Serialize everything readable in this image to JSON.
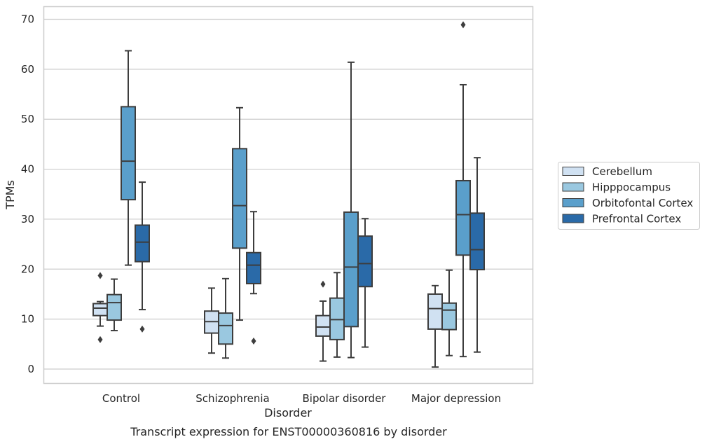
{
  "chart_data": {
    "type": "box",
    "xlabel": "Disorder",
    "ylabel": "TPMs",
    "caption": "Transcript expression for ENST00000360816 by disorder",
    "ylim": [
      -3,
      72.5
    ],
    "yticks": [
      0,
      10,
      20,
      30,
      40,
      50,
      60,
      70
    ],
    "grid": "horizontal",
    "legend_position": "right",
    "categories": [
      "Control",
      "Schizophrenia",
      "Bipolar disorder",
      "Major depression"
    ],
    "series": [
      {
        "name": "Cerebellum",
        "color": "#d0e1f2",
        "boxes": [
          {
            "whisker_low": 8.6,
            "q1": 10.7,
            "median": 12.2,
            "q3": 13.1,
            "whisker_high": 13.5,
            "outliers": [
              18.7,
              5.9
            ]
          },
          {
            "whisker_low": 3.2,
            "q1": 7.2,
            "median": 9.5,
            "q3": 11.6,
            "whisker_high": 16.2,
            "outliers": []
          },
          {
            "whisker_low": 1.6,
            "q1": 6.6,
            "median": 8.4,
            "q3": 10.7,
            "whisker_high": 13.6,
            "outliers": [
              17.0
            ]
          },
          {
            "whisker_low": 0.4,
            "q1": 8.0,
            "median": 12.1,
            "q3": 15.0,
            "whisker_high": 16.7,
            "outliers": []
          }
        ]
      },
      {
        "name": "Hipppocampus",
        "color": "#9ac8e0",
        "boxes": [
          {
            "whisker_low": 7.7,
            "q1": 9.8,
            "median": 13.3,
            "q3": 14.9,
            "whisker_high": 18.0,
            "outliers": []
          },
          {
            "whisker_low": 2.2,
            "q1": 5.0,
            "median": 8.7,
            "q3": 11.2,
            "whisker_high": 18.1,
            "outliers": []
          },
          {
            "whisker_low": 2.4,
            "q1": 5.9,
            "median": 9.9,
            "q3": 14.2,
            "whisker_high": 19.3,
            "outliers": []
          },
          {
            "whisker_low": 2.7,
            "q1": 7.9,
            "median": 11.8,
            "q3": 13.2,
            "whisker_high": 19.8,
            "outliers": []
          }
        ]
      },
      {
        "name": "Orbitofontal Cortex",
        "color": "#5a9fcb",
        "boxes": [
          {
            "whisker_low": 20.8,
            "q1": 33.9,
            "median": 41.6,
            "q3": 52.5,
            "whisker_high": 63.7,
            "outliers": []
          },
          {
            "whisker_low": 9.8,
            "q1": 24.2,
            "median": 32.7,
            "q3": 44.1,
            "whisker_high": 52.3,
            "outliers": []
          },
          {
            "whisker_low": 2.3,
            "q1": 8.5,
            "median": 20.4,
            "q3": 31.4,
            "whisker_high": 61.4,
            "outliers": []
          },
          {
            "whisker_low": 2.5,
            "q1": 22.8,
            "median": 30.9,
            "q3": 37.7,
            "whisker_high": 56.9,
            "outliers": [
              68.9
            ]
          }
        ]
      },
      {
        "name": "Prefrontal Cortex",
        "color": "#2a6aa8",
        "boxes": [
          {
            "whisker_low": 11.9,
            "q1": 21.5,
            "median": 25.4,
            "q3": 28.8,
            "whisker_high": 37.4,
            "outliers": [
              8.0
            ]
          },
          {
            "whisker_low": 15.1,
            "q1": 17.1,
            "median": 20.8,
            "q3": 23.3,
            "whisker_high": 31.5,
            "outliers": [
              5.6
            ]
          },
          {
            "whisker_low": 4.4,
            "q1": 16.5,
            "median": 21.1,
            "q3": 26.6,
            "whisker_high": 30.1,
            "outliers": []
          },
          {
            "whisker_low": 3.4,
            "q1": 19.9,
            "median": 23.9,
            "q3": 31.2,
            "whisker_high": 42.3,
            "outliers": []
          }
        ]
      }
    ]
  }
}
